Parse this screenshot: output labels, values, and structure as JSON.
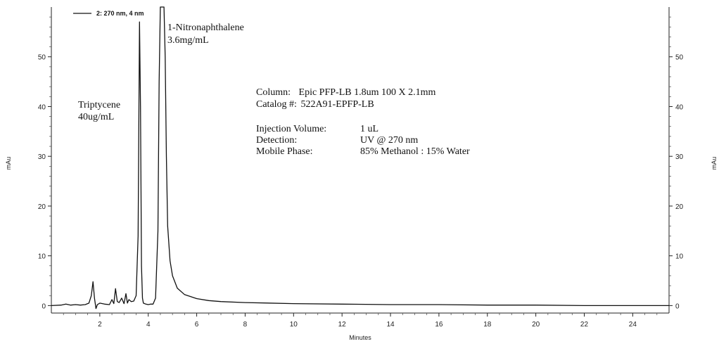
{
  "chart_data": {
    "type": "line",
    "title": "",
    "xlabel": "Minutes",
    "ylabel_left": "mAu",
    "ylabel_right": "mAu",
    "xlim": [
      0,
      25.5
    ],
    "ylim": [
      -1.5,
      60
    ],
    "x_ticks": [
      2,
      4,
      6,
      8,
      10,
      12,
      14,
      16,
      18,
      20,
      22,
      24
    ],
    "y_ticks_left": [
      0,
      10,
      20,
      30,
      40,
      50
    ],
    "y_ticks_right": [
      0,
      10,
      20,
      30,
      40,
      50
    ],
    "grid": false,
    "legend": {
      "position": "top-left",
      "entries": [
        "2: 270 nm, 4 nm"
      ]
    },
    "series": [
      {
        "name": "2: 270 nm, 4 nm",
        "x": [
          0.0,
          0.4,
          0.6,
          0.8,
          1.0,
          1.2,
          1.4,
          1.55,
          1.65,
          1.72,
          1.78,
          1.84,
          1.9,
          2.0,
          2.2,
          2.4,
          2.5,
          2.58,
          2.65,
          2.72,
          2.8,
          2.9,
          3.0,
          3.08,
          3.14,
          3.2,
          3.3,
          3.4,
          3.5,
          3.58,
          3.64,
          3.68,
          3.72,
          3.76,
          3.8,
          3.9,
          4.0,
          4.1,
          4.2,
          4.3,
          4.4,
          4.45,
          4.5,
          4.55,
          4.6,
          4.65,
          4.7,
          4.75,
          4.8,
          4.9,
          5.0,
          5.2,
          5.5,
          6.0,
          6.5,
          7.0,
          8.0,
          10.0,
          12.0,
          14.0,
          16.0,
          18.0,
          20.0,
          22.0,
          24.0,
          25.5
        ],
        "y": [
          0,
          0.1,
          0.3,
          0.1,
          0.2,
          0.1,
          0.2,
          0.5,
          2.0,
          4.8,
          1.5,
          -0.6,
          0.2,
          0.5,
          0.3,
          0.2,
          1.2,
          0.4,
          3.4,
          0.8,
          0.6,
          1.5,
          0.4,
          2.4,
          0.5,
          1.2,
          0.8,
          0.9,
          2.0,
          14.0,
          57.0,
          40.0,
          8.0,
          1.5,
          0.5,
          0.3,
          0.2,
          0.3,
          0.3,
          1.5,
          15.0,
          45.0,
          65.0,
          65.0,
          65.0,
          65.0,
          50.0,
          30.0,
          16.0,
          9.0,
          6.0,
          3.5,
          2.2,
          1.4,
          1.0,
          0.8,
          0.6,
          0.4,
          0.3,
          0.2,
          0.2,
          0.1,
          0.1,
          0.0,
          0.0,
          0.0
        ]
      }
    ],
    "annotations": [
      {
        "id": "triptycene",
        "lines": [
          "Triptycene",
          "40ug/mL"
        ]
      },
      {
        "id": "nitronaphthalene",
        "lines": [
          "1-Nitronaphthalene",
          "3.6mg/mL"
        ]
      }
    ],
    "method_info": [
      {
        "label": "Column:",
        "value": "Epic PFP-LB 1.8um 100 X 2.1mm"
      },
      {
        "label": "Catalog #:",
        "value": "522A91-EPFP-LB"
      },
      {
        "label": "Injection Volume:",
        "value": "1 uL"
      },
      {
        "label": "Detection:",
        "value": "UV @ 270 nm"
      },
      {
        "label": "Mobile Phase:",
        "value": "85% Methanol : 15% Water"
      }
    ]
  }
}
